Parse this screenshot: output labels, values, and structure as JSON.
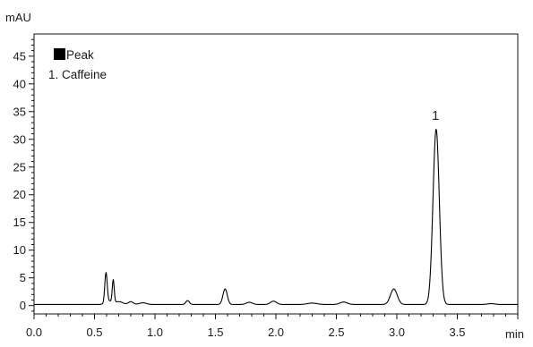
{
  "chart_data": {
    "type": "line",
    "xlabel": "min",
    "ylabel": "mAU",
    "xlim": [
      0.0,
      4.0
    ],
    "ylim": [
      -1.5,
      49
    ],
    "x_major_ticks": [
      0.0,
      0.5,
      1.0,
      1.5,
      2.0,
      2.5,
      3.0,
      3.5
    ],
    "x_tick_labels": [
      "0.0",
      "0.5",
      "1.0",
      "1.5",
      "2.0",
      "2.5",
      "3.0",
      "3.5"
    ],
    "y_major_ticks": [
      0,
      5,
      10,
      15,
      20,
      25,
      30,
      35,
      40,
      45
    ],
    "y_tick_labels": [
      "0",
      "5",
      "10",
      "15",
      "20",
      "25",
      "30",
      "35",
      "40",
      "45"
    ],
    "grid": false,
    "legend": {
      "placement": "top-left",
      "title": "Peak",
      "entries": [
        "1. Caffeine"
      ]
    },
    "annotations": [
      {
        "text": "1",
        "x": 3.32,
        "y": 33.5
      }
    ],
    "baseline": 0.2,
    "series": [
      {
        "peaks": [
          {
            "center": 0.595,
            "height": 5.4,
            "width": 0.01
          },
          {
            "center": 0.655,
            "height": 4.0,
            "width": 0.008
          },
          {
            "center": 0.625,
            "height": 0.6,
            "width": 0.03
          },
          {
            "center": 0.705,
            "height": 0.5,
            "width": 0.03
          },
          {
            "center": 0.8,
            "height": 0.5,
            "width": 0.02
          },
          {
            "center": 0.9,
            "height": 0.3,
            "width": 0.03
          },
          {
            "center": 1.27,
            "height": 0.7,
            "width": 0.015
          },
          {
            "center": 1.58,
            "height": 2.8,
            "width": 0.018
          },
          {
            "center": 1.78,
            "height": 0.4,
            "width": 0.025
          },
          {
            "center": 1.98,
            "height": 0.6,
            "width": 0.025
          },
          {
            "center": 2.3,
            "height": 0.25,
            "width": 0.04
          },
          {
            "center": 2.56,
            "height": 0.45,
            "width": 0.03
          },
          {
            "center": 2.975,
            "height": 2.8,
            "width": 0.028
          },
          {
            "center": 3.325,
            "height": 31.6,
            "width": 0.026
          },
          {
            "center": 3.78,
            "height": 0.15,
            "width": 0.03
          }
        ]
      }
    ]
  }
}
